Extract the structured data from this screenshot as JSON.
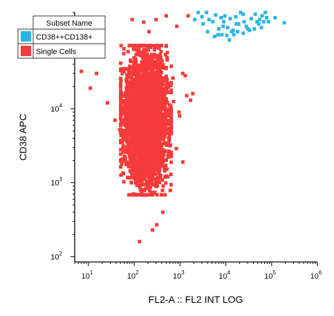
{
  "chart_data": {
    "type": "scatter",
    "xlabel": "FL2-A :: FL2 INT LOG",
    "ylabel": "CD38 APC",
    "xscale": "log",
    "yscale": "log",
    "xlim": [
      5,
      1000000
    ],
    "ylim": [
      85,
      200000
    ],
    "x_ticks": [
      {
        "value": 10,
        "base": "10",
        "exp": "1"
      },
      {
        "value": 100,
        "base": "10",
        "exp": "2"
      },
      {
        "value": 1000,
        "base": "10",
        "exp": "3"
      },
      {
        "value": 10000,
        "base": "10",
        "exp": "4"
      },
      {
        "value": 100000,
        "base": "10",
        "exp": "5"
      },
      {
        "value": 1000000,
        "base": "10",
        "exp": "6"
      }
    ],
    "y_ticks": [
      {
        "value": 100,
        "base": "10",
        "exp": "2"
      },
      {
        "value": 1000,
        "base": "10",
        "exp": "3"
      },
      {
        "value": 10000,
        "base": "10",
        "exp": "4"
      },
      {
        "value": 100000,
        "base": "10",
        "exp": "5"
      }
    ],
    "grid": false,
    "legend": {
      "position": "top-left",
      "header": "Subset Name",
      "entries": [
        {
          "label": "CD38++CD138+",
          "color": "#29b6e6"
        },
        {
          "label": "Single Cells",
          "color": "#f53a3a"
        }
      ]
    },
    "series": [
      {
        "name": "Single Cells",
        "color": "#f53a3a",
        "marker": "square",
        "cluster": {
          "center": [
            180,
            7000
          ],
          "spread_log10": [
            0.23,
            0.42
          ],
          "count": 3400
        },
        "points": [
          [
            7,
            32000
          ],
          [
            11,
            19000
          ],
          [
            15,
            30000
          ],
          [
            26,
            12000
          ],
          [
            38,
            7000
          ],
          [
            48,
            5200
          ],
          [
            55,
            3500
          ],
          [
            62,
            2600
          ],
          [
            70,
            26000
          ],
          [
            90,
            160000
          ],
          [
            160,
            148000
          ],
          [
            210,
            110000
          ],
          [
            300,
            160000
          ],
          [
            500,
            180000
          ],
          [
            700,
            26000
          ],
          [
            830,
            2900
          ],
          [
            1150,
            1900
          ],
          [
            650,
            4800
          ],
          [
            950,
            9000
          ],
          [
            1300,
            28000
          ],
          [
            1700,
            13000
          ],
          [
            980,
            8000
          ],
          [
            720,
            12500
          ],
          [
            540,
            1200
          ],
          [
            420,
            400
          ],
          [
            130,
            160
          ],
          [
            310,
            270
          ],
          [
            430,
            25000
          ],
          [
            1500,
            180000
          ],
          [
            850,
            130000
          ],
          [
            1150,
            30000
          ],
          [
            1400,
            15000
          ],
          [
            1900,
            16000
          ],
          [
            250,
            230
          ]
        ]
      },
      {
        "name": "CD38++CD138+",
        "color": "#29b6e6",
        "marker": "square",
        "points": [
          [
            2100,
            160000
          ],
          [
            2500,
            200000
          ],
          [
            3200,
            140000
          ],
          [
            3800,
            200000
          ],
          [
            4300,
            160000
          ],
          [
            5200,
            150000
          ],
          [
            6000,
            185000
          ],
          [
            7000,
            120000
          ],
          [
            7900,
            170000
          ],
          [
            8700,
            130000
          ],
          [
            9500,
            180000
          ],
          [
            11000,
            125000
          ],
          [
            12500,
            165000
          ],
          [
            14500,
            115000
          ],
          [
            16500,
            175000
          ],
          [
            19000,
            140000
          ],
          [
            21000,
            200000
          ],
          [
            25000,
            150000
          ],
          [
            30000,
            120000
          ],
          [
            36000,
            165000
          ],
          [
            44000,
            190000
          ],
          [
            52000,
            140000
          ],
          [
            62000,
            180000
          ],
          [
            73000,
            200000
          ],
          [
            85000,
            150000
          ],
          [
            120000,
            170000
          ],
          [
            190000,
            145000
          ],
          [
            4000,
            110000
          ],
          [
            5700,
            95000
          ],
          [
            8200,
            100000
          ],
          [
            10500,
            98000
          ],
          [
            13500,
            110000
          ],
          [
            18000,
            110000
          ],
          [
            24000,
            105000
          ],
          [
            33000,
            115000
          ],
          [
            48000,
            150000
          ],
          [
            60000,
            125000
          ],
          [
            78000,
            170000
          ],
          [
            12000,
            85000
          ],
          [
            6800,
            100000
          ],
          [
            15000,
            100000
          ],
          [
            28000,
            130000
          ],
          [
            42000,
            120000
          ],
          [
            67000,
            150000
          ],
          [
            9000,
            150000
          ],
          [
            3000,
            175000
          ],
          [
            24000,
            190000
          ],
          [
            55000,
            160000
          ],
          [
            17000,
            140000
          ]
        ]
      }
    ]
  }
}
